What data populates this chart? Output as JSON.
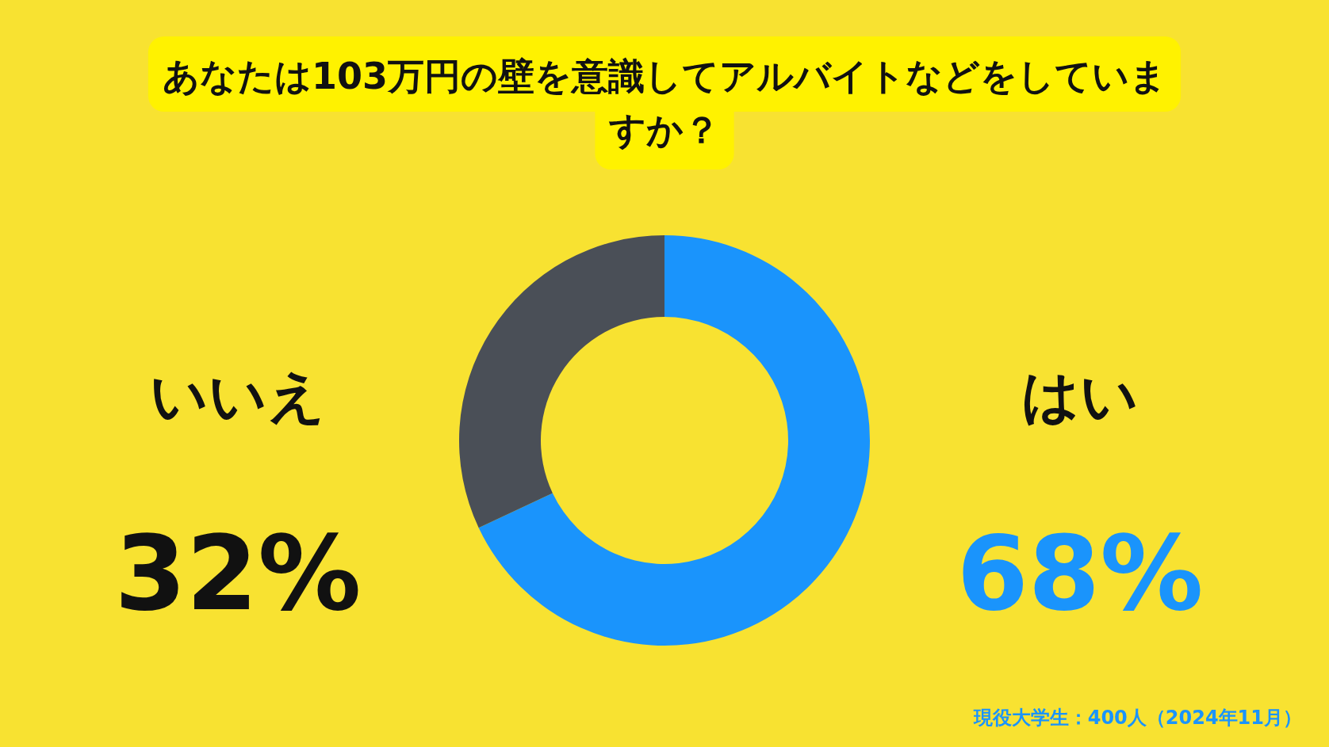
{
  "chart_data": {
    "type": "donut",
    "title": "あなたは103万円の壁を意識してアルバイトなどをしていますか？",
    "categories": [
      "はい",
      "いいえ"
    ],
    "values": [
      68,
      32
    ],
    "colors": [
      "#1a94fc",
      "#4a4f57"
    ],
    "value_labels": [
      "68%",
      "32%"
    ],
    "annotations": [
      "現役大学生：400人（2024年11月）"
    ]
  }
}
